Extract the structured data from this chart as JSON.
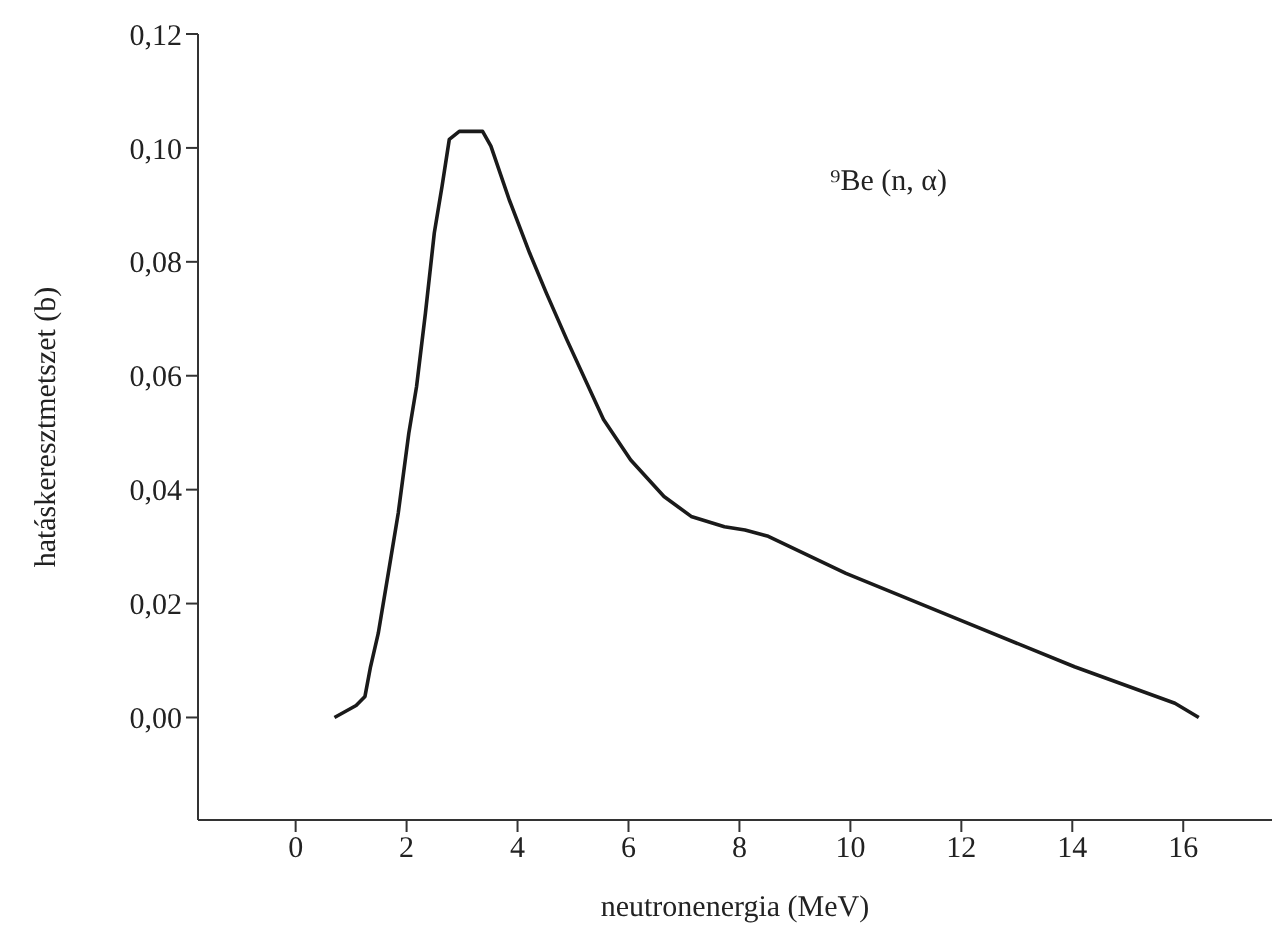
{
  "chart_data": {
    "type": "line",
    "xlabel": "neutronenergia (MeV)",
    "ylabel": "hatáskeresztmetszet (b)",
    "annotations": [
      "⁹Be (n, α)"
    ],
    "x": [
      0.7,
      1.09,
      1.25,
      1.35,
      1.49,
      1.67,
      1.85,
      2.04,
      2.18,
      2.34,
      2.5,
      2.64,
      2.77,
      2.95,
      3.37,
      3.52,
      3.85,
      4.22,
      4.52,
      4.89,
      5.55,
      6.04,
      6.64,
      7.13,
      7.73,
      8.1,
      8.52,
      9.92,
      11.98,
      14.04,
      15.85,
      16.28
    ],
    "series": [
      {
        "color": "#1a1a1a",
        "values": [
          0.0,
          0.0021,
          0.0037,
          0.0089,
          0.0148,
          0.0253,
          0.0359,
          0.0499,
          0.0581,
          0.071,
          0.0851,
          0.0933,
          0.1015,
          0.1029,
          0.1029,
          0.1003,
          0.0909,
          0.0815,
          0.0745,
          0.0663,
          0.0523,
          0.0452,
          0.0388,
          0.0353,
          0.0335,
          0.0329,
          0.0318,
          0.0253,
          0.0171,
          0.0089,
          0.0025,
          0.0
        ]
      }
    ],
    "xlim": [
      -1.76,
      17.6
    ],
    "xticks": [
      0,
      2,
      4,
      6,
      8,
      10,
      12,
      14,
      16
    ],
    "ylim": [
      -0.018,
      0.12
    ],
    "yticks": [
      {
        "value": 0,
        "label": "0,00"
      },
      {
        "value": 0.02,
        "label": "0,02"
      },
      {
        "value": 0.04,
        "label": "0,04"
      },
      {
        "value": 0.06,
        "label": "0,06"
      },
      {
        "value": 0.08,
        "label": "0,08"
      },
      {
        "value": 0.1,
        "label": "0,10"
      },
      {
        "value": 0.12,
        "label": "0,12"
      }
    ],
    "grid": false,
    "legend": false,
    "marker": "none",
    "line_style": "solid"
  }
}
